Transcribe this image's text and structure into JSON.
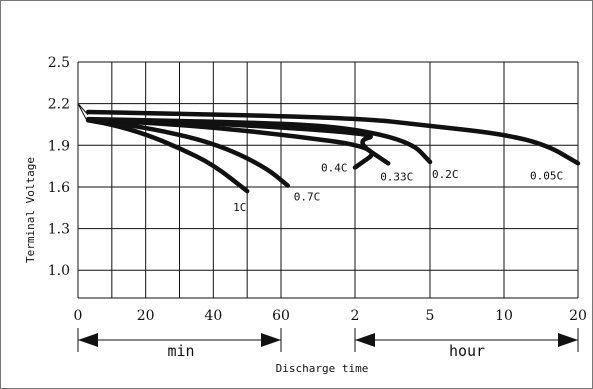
{
  "chart_data": {
    "type": "line",
    "xlabel": "Discharge time",
    "ylabel": "Terminal Voltage",
    "ylim": [
      0.8,
      2.5
    ],
    "yticks": [
      "2.5",
      "2.2",
      "1.9",
      "1.6",
      "1.3",
      "1.0"
    ],
    "xticks": [
      "0",
      "20",
      "40",
      "60",
      "2",
      "5",
      "10",
      "20"
    ],
    "grid": true,
    "x_axis_segments": [
      {
        "label": "min",
        "ticks": [
          "0",
          "20",
          "40",
          "60"
        ]
      },
      {
        "label": "hour",
        "ticks": [
          "2",
          "5",
          "10",
          "20"
        ]
      }
    ],
    "series": [
      {
        "name": "1C",
        "points": [
          [
            "3 min",
            2.08
          ],
          [
            "10 min",
            2.05
          ],
          [
            "20 min",
            1.98
          ],
          [
            "30 min",
            1.88
          ],
          [
            "40 min",
            1.76
          ],
          [
            "50 min",
            1.57
          ]
        ]
      },
      {
        "name": "0.7C",
        "points": [
          [
            "3 min",
            2.08
          ],
          [
            "20 min",
            2.03
          ],
          [
            "40 min",
            1.92
          ],
          [
            "55 min",
            1.75
          ],
          [
            "62 min",
            1.61
          ]
        ]
      },
      {
        "name": "0.4C",
        "points": [
          [
            "3 min",
            2.09
          ],
          [
            "30 min",
            2.05
          ],
          [
            "60 min",
            1.98
          ],
          [
            "90 min",
            1.88
          ],
          [
            "2 hour",
            1.74
          ]
        ]
      },
      {
        "name": "0.33C",
        "points": [
          [
            "3 min",
            2.09
          ],
          [
            "40 min",
            2.06
          ],
          [
            "90 min",
            1.98
          ],
          [
            "2 hour",
            1.93
          ],
          [
            "3 hour",
            1.77
          ]
        ]
      },
      {
        "name": "0.2C",
        "points": [
          [
            "3 min",
            2.1
          ],
          [
            "60 min",
            2.06
          ],
          [
            "2 hour",
            2.02
          ],
          [
            "4 hour",
            1.92
          ],
          [
            "5 hour",
            1.78
          ]
        ]
      },
      {
        "name": "0.05C",
        "points": [
          [
            "3 min",
            2.14
          ],
          [
            "2 hour",
            2.1
          ],
          [
            "5 hour",
            2.04
          ],
          [
            "10 hour",
            1.98
          ],
          [
            "15 hour",
            1.9
          ],
          [
            "20 hour",
            1.77
          ]
        ]
      }
    ],
    "xlabel_units": [
      "min",
      "hour"
    ]
  }
}
